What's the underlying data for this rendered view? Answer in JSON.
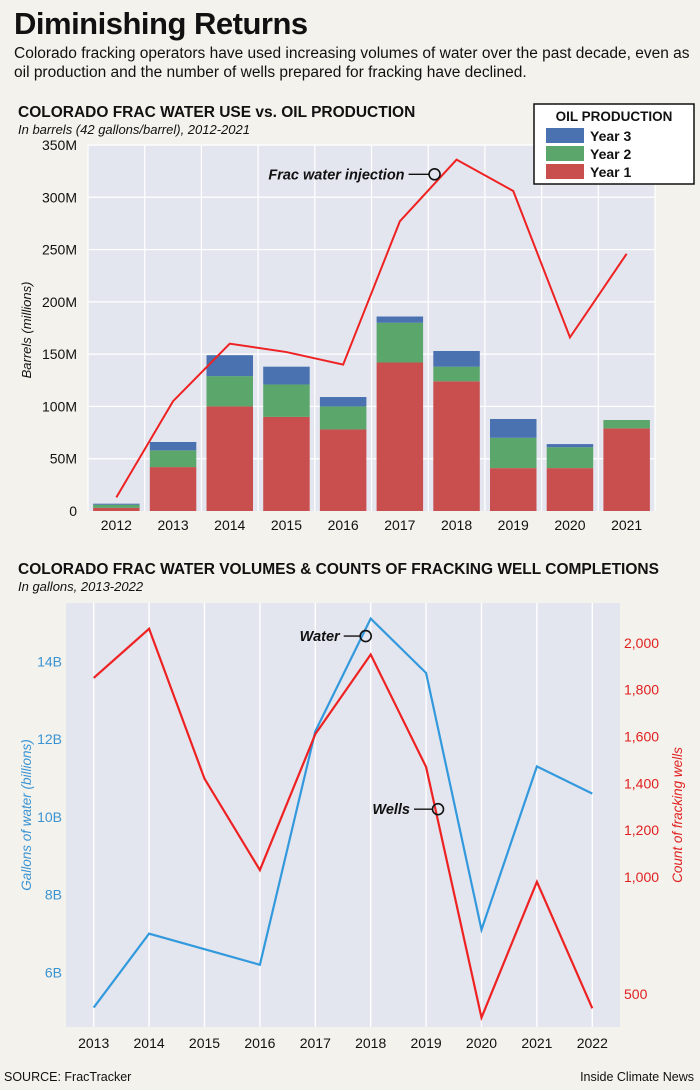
{
  "title": "Diminishing Returns",
  "subtitle": "Colorado fracking operators have used increasing volumes of water over the past decade, even as oil production and the number of wells prepared for fracking have declined.",
  "source": "SOURCE: FracTracker",
  "credit": "Inside Climate News",
  "colors": {
    "background": "#f3f2ec",
    "plot_bg": "#e4e6ef",
    "year1": "#c94f4f",
    "year2": "#5aa66b",
    "year3": "#4a72b0",
    "water_line": "#ee2222",
    "gallons_line": "#3399dd",
    "wells_line": "#ee2222",
    "left_axis_blue": "#3a93d3",
    "right_axis_red": "#e02020"
  },
  "chart_data": [
    {
      "type": "bar",
      "title": "COLORADO FRAC WATER USE vs. OIL PRODUCTION",
      "subtitle": "In barrels (42 gallons/barrel), 2012-2021",
      "ylabel": "Barrels (millions)",
      "ylim": [
        0,
        350
      ],
      "yticks": [
        0,
        50,
        100,
        150,
        200,
        250,
        300,
        350
      ],
      "ytick_labels": [
        "0",
        "50M",
        "100M",
        "150M",
        "200M",
        "250M",
        "300M",
        "350M"
      ],
      "categories": [
        "2012",
        "2013",
        "2014",
        "2015",
        "2016",
        "2017",
        "2018",
        "2019",
        "2020",
        "2021"
      ],
      "stacked": true,
      "legend_title": "OIL PRODUCTION",
      "legend_position": "top-right",
      "series": [
        {
          "name": "Year 1",
          "values": [
            3,
            42,
            100,
            90,
            78,
            142,
            124,
            41,
            41,
            79
          ]
        },
        {
          "name": "Year 2",
          "values": [
            3,
            16,
            29,
            31,
            22,
            38,
            14,
            29,
            20,
            8
          ]
        },
        {
          "name": "Year 3",
          "values": [
            1,
            8,
            20,
            17,
            9,
            6,
            15,
            18,
            3,
            0
          ]
        }
      ],
      "line": {
        "name": "Frac water injection",
        "values": [
          13,
          105,
          160,
          152,
          140,
          277,
          336,
          306,
          166,
          246
        ]
      },
      "annotation": "Frac water injection"
    },
    {
      "type": "line",
      "title": "COLORADO FRAC WATER VOLUMES & COUNTS OF FRACKING WELL COMPLETIONS",
      "subtitle": "In gallons, 2013-2022",
      "x": [
        "2013",
        "2014",
        "2015",
        "2016",
        "2017",
        "2018",
        "2019",
        "2020",
        "2021",
        "2022"
      ],
      "ylabel_left": "Gallons of water (billions)",
      "ylabel_right": "Count of fracking wells",
      "yticks_left": [
        6,
        8,
        10,
        12,
        14
      ],
      "ytick_labels_left": [
        "6B",
        "8B",
        "10B",
        "12B",
        "14B"
      ],
      "ylim_left": [
        4.6,
        15.5
      ],
      "yticks_right": [
        500,
        1000,
        1200,
        1400,
        1600,
        1800,
        2000
      ],
      "ytick_labels_right": [
        "500",
        "1,000",
        "1,200",
        "1,400",
        "1,600",
        "1,800",
        "2,000"
      ],
      "ylim_right": [
        360,
        2170
      ],
      "series": [
        {
          "name": "Water",
          "axis": "left",
          "values": [
            5.1,
            7.0,
            6.6,
            6.2,
            12.2,
            15.1,
            13.7,
            7.1,
            11.3,
            10.6
          ]
        },
        {
          "name": "Wells",
          "axis": "right",
          "values": [
            1850,
            2060,
            1420,
            1030,
            1610,
            1950,
            1470,
            400,
            980,
            440
          ]
        }
      ],
      "annotations": [
        "Water",
        "Wells"
      ]
    }
  ]
}
